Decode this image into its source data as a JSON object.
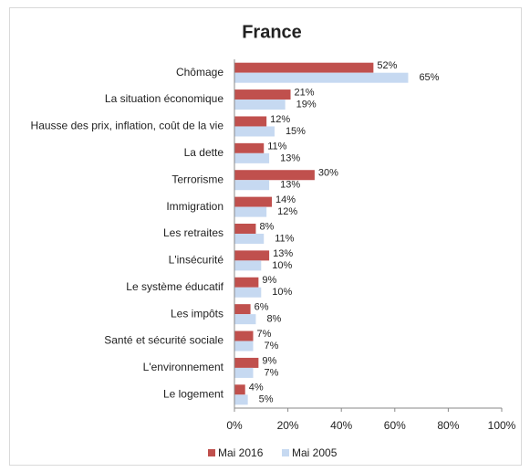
{
  "chart_data": {
    "type": "bar",
    "orientation": "horizontal",
    "title": "France",
    "categories": [
      "Chômage",
      "La situation économique",
      "Hausse des prix, inflation, coût de la vie",
      "La dette",
      "Terrorisme",
      "Immigration",
      "Les retraites",
      "L'insécurité",
      "Le système éducatif",
      "Les impôts",
      "Santé et sécurité sociale",
      "L'environnement",
      "Le logement"
    ],
    "series": [
      {
        "name": "Mai 2016",
        "color": "#c0504d",
        "values": [
          52,
          21,
          12,
          11,
          30,
          14,
          8,
          13,
          9,
          6,
          7,
          9,
          4
        ],
        "value_labels": [
          "52%",
          "21%",
          "12%",
          "11%",
          "30%",
          "14%",
          "8%",
          "13%",
          "9%",
          "6%",
          "7%",
          "9%",
          "4%"
        ]
      },
      {
        "name": "Mai 2005",
        "color": "#c6d9f1",
        "values": [
          65,
          19,
          15,
          13,
          13,
          12,
          11,
          10,
          10,
          8,
          7,
          7,
          5
        ],
        "value_labels": [
          "65%",
          "19%",
          "15%",
          "13%",
          "13%",
          "12%",
          "11%",
          "10%",
          "10%",
          "8%",
          "7%",
          "7%",
          "5%"
        ]
      }
    ],
    "xlim": [
      0,
      100
    ],
    "xticks": [
      {
        "value": 0,
        "label": "0%"
      },
      {
        "value": 20,
        "label": "20%"
      },
      {
        "value": 40,
        "label": "40%"
      },
      {
        "value": 60,
        "label": "60%"
      },
      {
        "value": 80,
        "label": "80%"
      },
      {
        "value": 100,
        "label": "100%"
      }
    ],
    "legend": "bottom"
  }
}
